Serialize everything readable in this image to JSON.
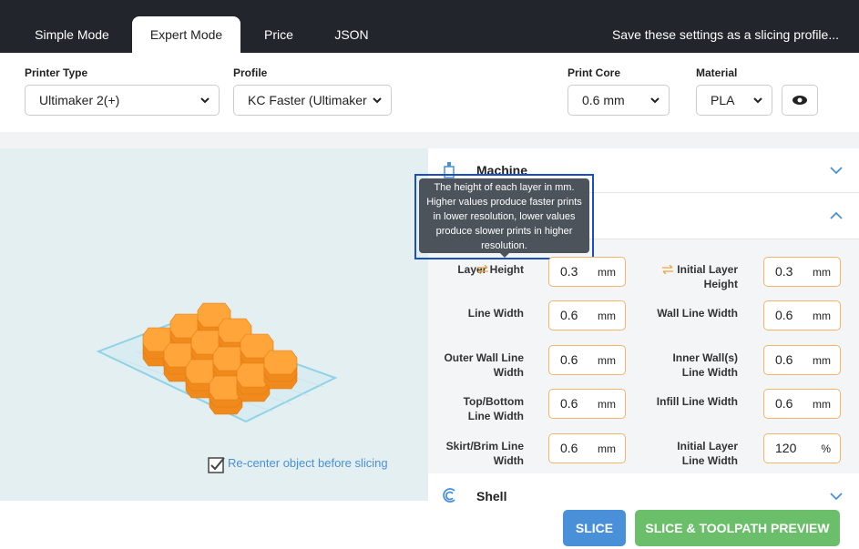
{
  "tabs": [
    "Simple Mode",
    "Expert Mode",
    "Price",
    "JSON"
  ],
  "save_link": "Save these settings as a slicing profile...",
  "selectors": [
    {
      "label": "Printer Type",
      "value": "Ultimaker 2(+)"
    },
    {
      "label": "Profile",
      "value": "KC Faster (Ultimaker"
    },
    {
      "label": "Print Core",
      "value": "0.6 mm"
    },
    {
      "label": "Material",
      "value": "PLA"
    }
  ],
  "viewer": {
    "recenter": "Re-center object before slicing"
  },
  "tooltip": "The height of each layer in mm. Higher values produce faster prints in lower resolution, lower values produce slower prints in higher resolution.",
  "panel": {
    "machine": "Machine",
    "shell": "Shell",
    "fields": [
      {
        "label": "Layer Height",
        "value": 0.3,
        "unit": "mm"
      },
      {
        "label": "Initial Layer Height",
        "value": 0.3,
        "unit": "mm"
      },
      {
        "label": "Line Width",
        "value": 0.6,
        "unit": "mm"
      },
      {
        "label": "Wall Line Width",
        "value": 0.6,
        "unit": "mm"
      },
      {
        "label": "Outer Wall Line Width",
        "value": 0.6,
        "unit": "mm"
      },
      {
        "label": "Inner Wall(s) Line Width",
        "value": 0.6,
        "unit": "mm"
      },
      {
        "label": "Top/Bottom Line Width",
        "value": 0.6,
        "unit": "mm"
      },
      {
        "label": "Infill Line Width",
        "value": 0.6,
        "unit": "mm"
      },
      {
        "label": "Skirt/Brim Line Width",
        "value": 0.6,
        "unit": "mm"
      },
      {
        "label": "Initial Layer Line Width",
        "value": 120,
        "unit": "%"
      }
    ]
  },
  "buttons": {
    "slice": "SLICE",
    "preview": "SLICE & TOOLPATH PREVIEW"
  }
}
